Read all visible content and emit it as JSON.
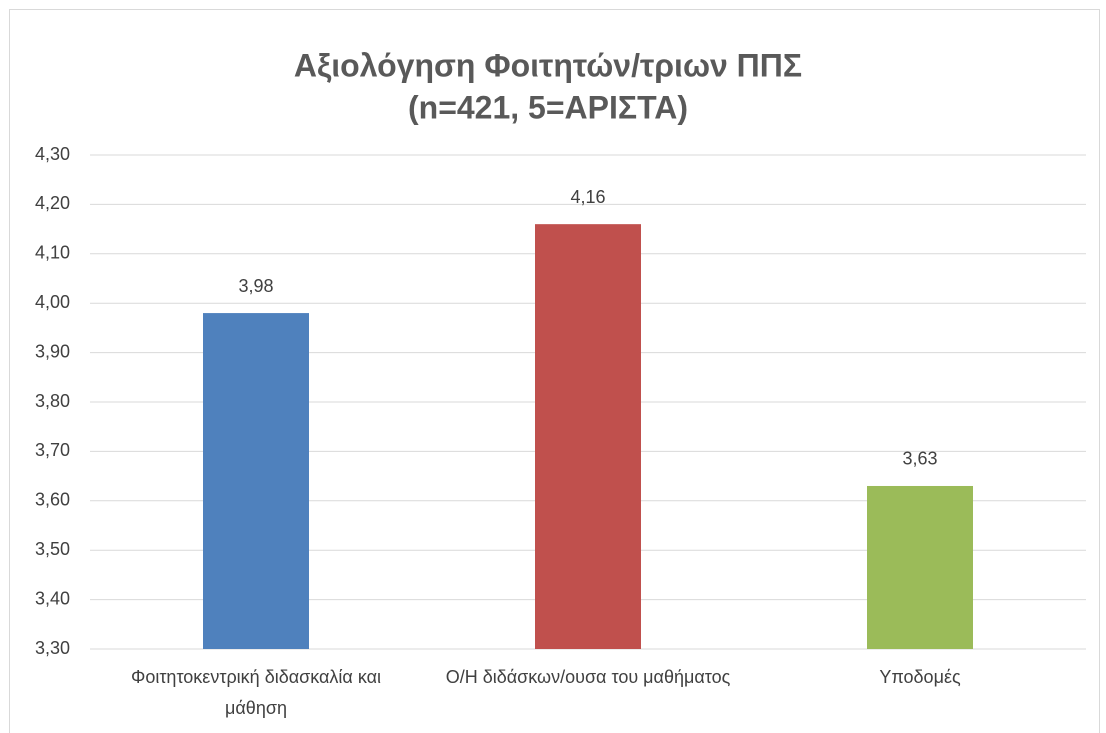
{
  "chart_data": {
    "type": "bar",
    "title": [
      "Αξιολόγηση Φοιτητών/τριων ΠΠΣ",
      "(n=421, 5=ΑΡΙΣΤΑ)"
    ],
    "categories": [
      "Φοιτητοκεντρική διδασκαλία και μάθηση",
      "Ο/Η διδάσκων/ουσα του μαθήματος",
      "Υποδομές"
    ],
    "values": [
      3.98,
      4.16,
      3.63
    ],
    "value_labels": [
      "3,98",
      "4,16",
      "3,63"
    ],
    "colors": [
      "#4f81bd",
      "#c0504d",
      "#9bbb59"
    ],
    "ylim": [
      3.3,
      4.3
    ],
    "yticks": [
      {
        "value": 3.3,
        "label": "3,30"
      },
      {
        "value": 3.4,
        "label": "3,40"
      },
      {
        "value": 3.5,
        "label": "3,50"
      },
      {
        "value": 3.6,
        "label": "3,60"
      },
      {
        "value": 3.7,
        "label": "3,70"
      },
      {
        "value": 3.8,
        "label": "3,80"
      },
      {
        "value": 3.9,
        "label": "3,90"
      },
      {
        "value": 4.0,
        "label": "4,00"
      },
      {
        "value": 4.1,
        "label": "4,10"
      },
      {
        "value": 4.2,
        "label": "4,20"
      },
      {
        "value": 4.3,
        "label": "4,30"
      }
    ],
    "grid": true
  }
}
